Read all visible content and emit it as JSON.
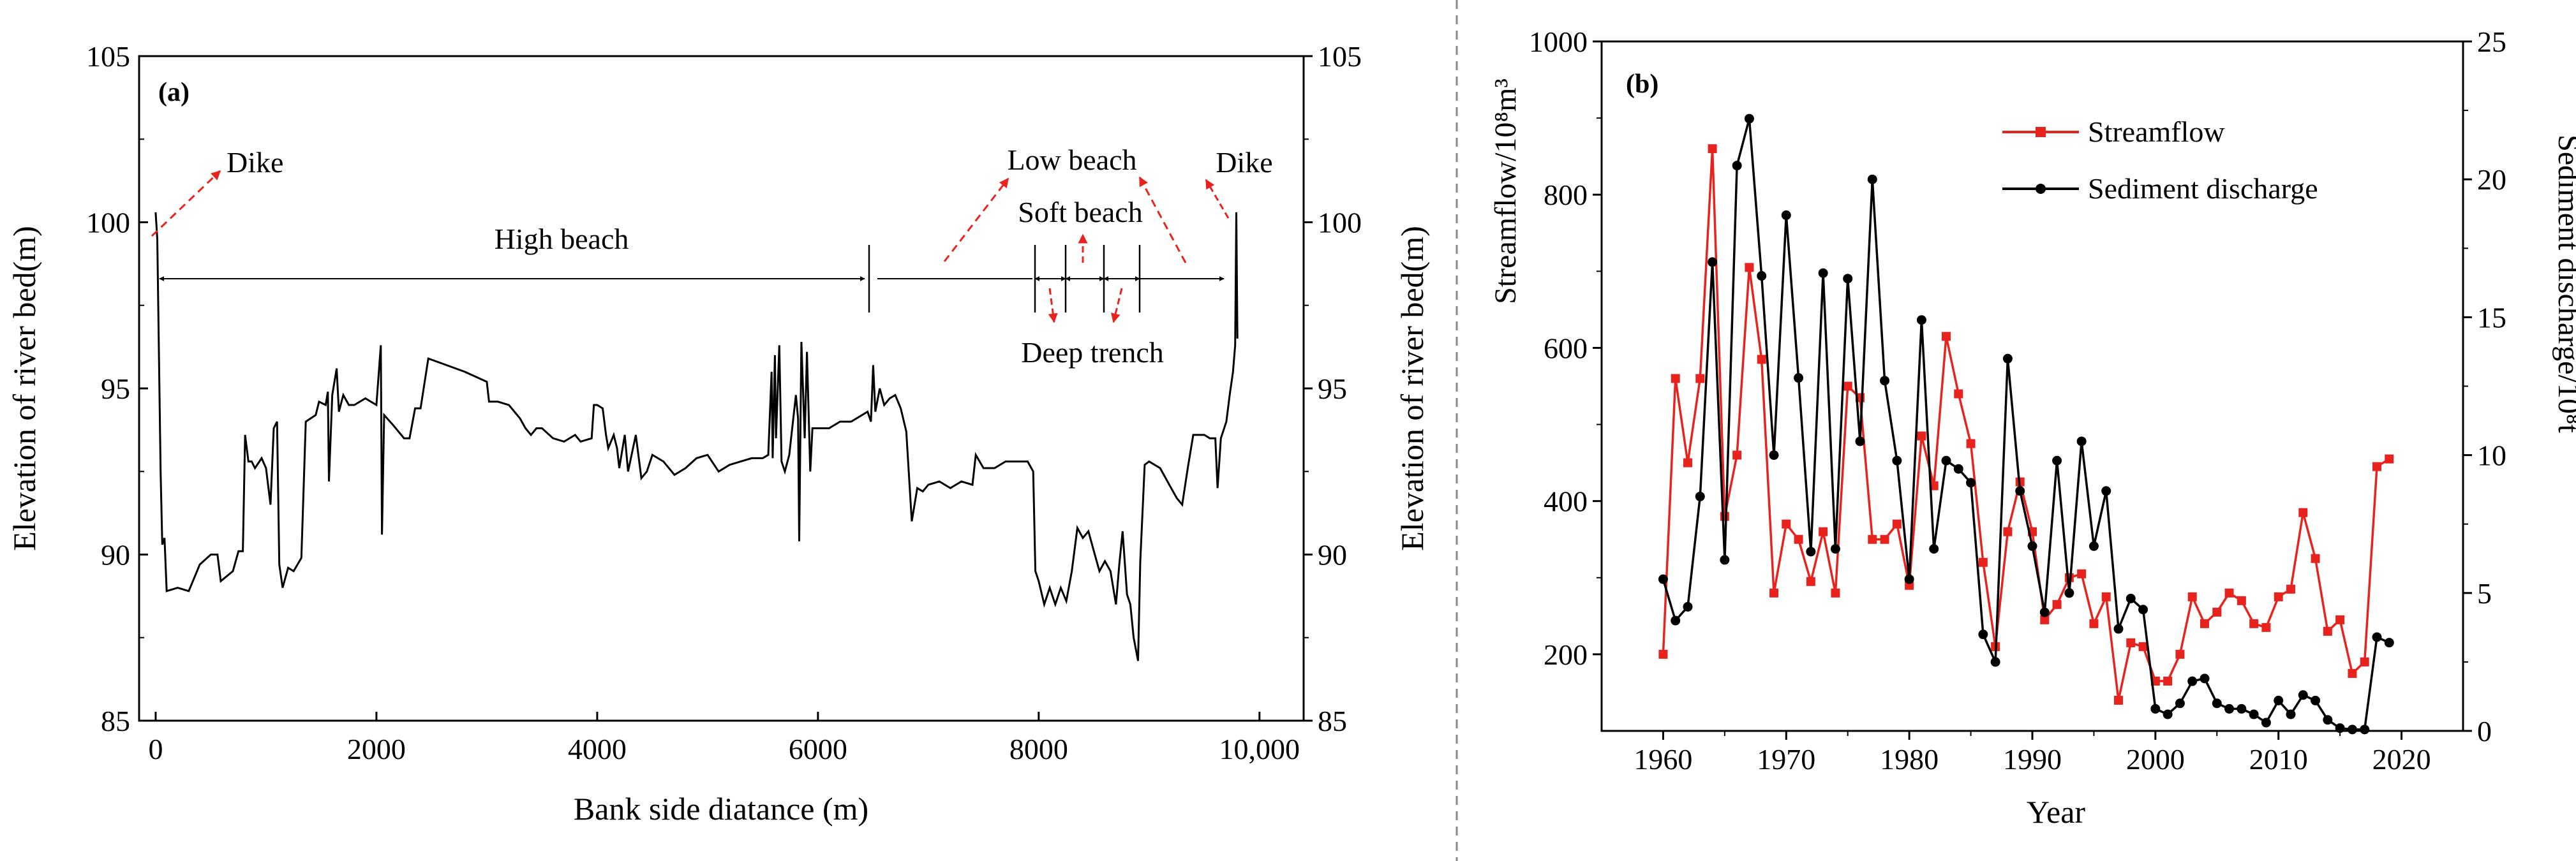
{
  "chart_data": [
    {
      "panel_label": "(a)",
      "type": "line",
      "xlabel": "Bank side diatance (m)",
      "ylabel_left": "Elevation of river bed(m)",
      "ylabel_right": "Elevation of river bed(m)",
      "xlim": [
        -150,
        10400
      ],
      "ylim": [
        85,
        105
      ],
      "x_ticks": [
        0,
        2000,
        4000,
        6000,
        8000,
        10000
      ],
      "x_tick_labels": [
        "0",
        "2000",
        "4000",
        "6000",
        "8000",
        "10,000"
      ],
      "y_ticks": [
        85,
        90,
        95,
        100,
        105
      ],
      "y_tick_labels": [
        "85",
        "90",
        "95",
        "100",
        "105"
      ],
      "annotations": {
        "dike_left": "Dike",
        "dike_right": "Dike",
        "high_beach": "High beach",
        "low_beach": "Low beach",
        "soft_beach": "Soft beach",
        "deep_trench": "Deep trench"
      },
      "zone_markers_x": [
        0,
        6500,
        8000,
        8250,
        8600,
        8850,
        9780
      ],
      "annotation_color": "#e8231e",
      "series": [
        {
          "name": "Elevation of river bed",
          "color": "#000000",
          "points": [
            [
              0,
              100.3
            ],
            [
              15,
              99.5
            ],
            [
              30,
              96
            ],
            [
              45,
              92.5
            ],
            [
              60,
              90.3
            ],
            [
              80,
              90.5
            ],
            [
              100,
              88.9
            ],
            [
              200,
              89
            ],
            [
              300,
              88.9
            ],
            [
              400,
              89.7
            ],
            [
              500,
              90
            ],
            [
              560,
              90
            ],
            [
              590,
              89.2
            ],
            [
              700,
              89.5
            ],
            [
              750,
              90.1
            ],
            [
              790,
              90.1
            ],
            [
              810,
              93.6
            ],
            [
              840,
              92.8
            ],
            [
              870,
              92.8
            ],
            [
              900,
              92.6
            ],
            [
              960,
              92.9
            ],
            [
              1000,
              92.6
            ],
            [
              1040,
              91.5
            ],
            [
              1070,
              93.8
            ],
            [
              1100,
              94
            ],
            [
              1120,
              89.7
            ],
            [
              1150,
              89
            ],
            [
              1200,
              89.6
            ],
            [
              1250,
              89.5
            ],
            [
              1320,
              89.9
            ],
            [
              1360,
              94
            ],
            [
              1450,
              94.2
            ],
            [
              1480,
              94.6
            ],
            [
              1540,
              94.5
            ],
            [
              1560,
              94.9
            ],
            [
              1570,
              92.2
            ],
            [
              1600,
              94.8
            ],
            [
              1640,
              95.6
            ],
            [
              1660,
              94.3
            ],
            [
              1700,
              94.8
            ],
            [
              1750,
              94.5
            ],
            [
              1800,
              94.5
            ],
            [
              1900,
              94.7
            ],
            [
              2000,
              94.5
            ],
            [
              2040,
              96.3
            ],
            [
              2050,
              90.6
            ],
            [
              2070,
              94.2
            ],
            [
              2150,
              93.9
            ],
            [
              2200,
              93.7
            ],
            [
              2250,
              93.5
            ],
            [
              2300,
              93.5
            ],
            [
              2350,
              94.4
            ],
            [
              2400,
              94.4
            ],
            [
              2470,
              95.9
            ],
            [
              2800,
              95.5
            ],
            [
              3000,
              95.2
            ],
            [
              3020,
              94.6
            ],
            [
              3100,
              94.6
            ],
            [
              3200,
              94.5
            ],
            [
              3300,
              94.1
            ],
            [
              3350,
              93.8
            ],
            [
              3400,
              93.6
            ],
            [
              3450,
              93.8
            ],
            [
              3500,
              93.8
            ],
            [
              3600,
              93.5
            ],
            [
              3700,
              93.4
            ],
            [
              3800,
              93.6
            ],
            [
              3850,
              93.4
            ],
            [
              3950,
              93.5
            ],
            [
              3970,
              94.5
            ],
            [
              4000,
              94.5
            ],
            [
              4050,
              94.4
            ],
            [
              4080,
              93.6
            ],
            [
              4100,
              93.2
            ],
            [
              4150,
              93.6
            ],
            [
              4180,
              93.2
            ],
            [
              4200,
              92.6
            ],
            [
              4250,
              93.6
            ],
            [
              4280,
              92.5
            ],
            [
              4350,
              93.6
            ],
            [
              4400,
              92.3
            ],
            [
              4450,
              92.5
            ],
            [
              4500,
              93
            ],
            [
              4600,
              92.8
            ],
            [
              4700,
              92.4
            ],
            [
              4800,
              92.6
            ],
            [
              4900,
              92.9
            ],
            [
              5000,
              93
            ],
            [
              5100,
              92.5
            ],
            [
              5200,
              92.7
            ],
            [
              5300,
              92.8
            ],
            [
              5400,
              92.9
            ],
            [
              5500,
              92.9
            ],
            [
              5550,
              93
            ],
            [
              5580,
              95.5
            ],
            [
              5590,
              92.9
            ],
            [
              5610,
              96
            ],
            [
              5620,
              93.5
            ],
            [
              5650,
              96.3
            ],
            [
              5670,
              92.8
            ],
            [
              5700,
              92.5
            ],
            [
              5740,
              93
            ],
            [
              5800,
              94.8
            ],
            [
              5820,
              94.1
            ],
            [
              5830,
              90.4
            ],
            [
              5850,
              96.4
            ],
            [
              5880,
              93.5
            ],
            [
              5900,
              96.1
            ],
            [
              5930,
              92.5
            ],
            [
              5950,
              93.8
            ],
            [
              6000,
              93.8
            ],
            [
              6100,
              93.8
            ],
            [
              6200,
              94
            ],
            [
              6300,
              94
            ],
            [
              6400,
              94.2
            ],
            [
              6450,
              94.3
            ],
            [
              6480,
              94
            ],
            [
              6500,
              95.7
            ],
            [
              6520,
              94.3
            ],
            [
              6560,
              95
            ],
            [
              6600,
              94.5
            ],
            [
              6650,
              94.7
            ],
            [
              6700,
              94.8
            ],
            [
              6750,
              94.4
            ],
            [
              6800,
              93.7
            ],
            [
              6850,
              91
            ],
            [
              6900,
              92
            ],
            [
              6950,
              91.9
            ],
            [
              7000,
              92.1
            ],
            [
              7100,
              92.2
            ],
            [
              7200,
              92
            ],
            [
              7300,
              92.2
            ],
            [
              7400,
              92.1
            ],
            [
              7430,
              93
            ],
            [
              7500,
              92.6
            ],
            [
              7600,
              92.6
            ],
            [
              7700,
              92.8
            ],
            [
              7800,
              92.8
            ],
            [
              7900,
              92.8
            ],
            [
              7950,
              92.5
            ],
            [
              7970,
              89.5
            ],
            [
              8000,
              89.2
            ],
            [
              8050,
              88.5
            ],
            [
              8100,
              89
            ],
            [
              8150,
              88.5
            ],
            [
              8200,
              89
            ],
            [
              8250,
              88.6
            ],
            [
              8300,
              89.5
            ],
            [
              8350,
              90.8
            ],
            [
              8400,
              90.5
            ],
            [
              8450,
              90.7
            ],
            [
              8500,
              90.1
            ],
            [
              8550,
              89.5
            ],
            [
              8600,
              89.8
            ],
            [
              8650,
              89.5
            ],
            [
              8700,
              88.5
            ],
            [
              8730,
              89.7
            ],
            [
              8760,
              90.7
            ],
            [
              8800,
              88.8
            ],
            [
              8830,
              88.5
            ],
            [
              8860,
              87.5
            ],
            [
              8900,
              86.8
            ],
            [
              8920,
              89.8
            ],
            [
              8960,
              92.7
            ],
            [
              9000,
              92.8
            ],
            [
              9100,
              92.6
            ],
            [
              9200,
              92
            ],
            [
              9250,
              91.7
            ],
            [
              9300,
              91.5
            ],
            [
              9350,
              92.6
            ],
            [
              9400,
              93.6
            ],
            [
              9500,
              93.6
            ],
            [
              9550,
              93.5
            ],
            [
              9600,
              93.5
            ],
            [
              9620,
              92
            ],
            [
              9650,
              93.5
            ],
            [
              9700,
              94
            ],
            [
              9730,
              94.8
            ],
            [
              9760,
              95.5
            ],
            [
              9780,
              96.3
            ],
            [
              9790,
              100.3
            ],
            [
              9800,
              96.5
            ]
          ]
        }
      ]
    },
    {
      "panel_label": "(b)",
      "type": "line",
      "xlabel": "Year",
      "ylabel_left": "Streamflow/10⁸m³",
      "ylabel_right": "Sediment discharge/10⁸t",
      "xlim": [
        1955,
        2025
      ],
      "ylim_left": [
        100,
        1000
      ],
      "ylim_right": [
        0,
        25
      ],
      "x_ticks": [
        1960,
        1970,
        1980,
        1990,
        2000,
        2010,
        2020
      ],
      "x_tick_labels": [
        "1960",
        "1970",
        "1980",
        "1990",
        "2000",
        "2010",
        "2020"
      ],
      "y_left_ticks": [
        200,
        400,
        600,
        800,
        1000
      ],
      "y_left_tick_labels": [
        "200",
        "400",
        "600",
        "800",
        "1000"
      ],
      "y_right_ticks": [
        0,
        5,
        10,
        15,
        20,
        25
      ],
      "y_right_tick_labels": [
        "0",
        "5",
        "10",
        "15",
        "20",
        "25"
      ],
      "legend_position": "top-right",
      "years": [
        1960,
        1961,
        1962,
        1963,
        1964,
        1965,
        1966,
        1967,
        1968,
        1969,
        1970,
        1971,
        1972,
        1973,
        1974,
        1975,
        1976,
        1977,
        1978,
        1979,
        1980,
        1981,
        1982,
        1983,
        1984,
        1985,
        1986,
        1987,
        1988,
        1989,
        1990,
        1991,
        1992,
        1993,
        1994,
        1995,
        1996,
        1997,
        1998,
        1999,
        2000,
        2001,
        2002,
        2003,
        2004,
        2005,
        2006,
        2007,
        2008,
        2009,
        2010,
        2011,
        2012,
        2013,
        2014,
        2015,
        2016,
        2017,
        2018,
        2019
      ],
      "series": [
        {
          "name": "Streamflow",
          "axis": "left",
          "color": "#e8231e",
          "marker": "square",
          "values": [
            200,
            560,
            450,
            560,
            860,
            380,
            460,
            705,
            585,
            280,
            370,
            350,
            295,
            360,
            280,
            550,
            535,
            350,
            350,
            370,
            290,
            485,
            420,
            615,
            540,
            475,
            320,
            210,
            360,
            425,
            360,
            245,
            265,
            300,
            305,
            240,
            275,
            140,
            215,
            210,
            165,
            165,
            200,
            275,
            240,
            255,
            280,
            270,
            240,
            235,
            275,
            285,
            385,
            325,
            230,
            245,
            175,
            190,
            445,
            455
          ]
        },
        {
          "name": "Sediment discharge",
          "axis": "right",
          "color": "#000000",
          "marker": "circle",
          "values": [
            5.5,
            4.0,
            4.5,
            8.5,
            17.0,
            6.2,
            20.5,
            22.2,
            16.5,
            10.0,
            18.7,
            12.8,
            6.5,
            16.6,
            6.6,
            16.4,
            10.5,
            20.0,
            12.7,
            9.8,
            5.5,
            14.9,
            6.6,
            9.8,
            9.5,
            9.0,
            3.5,
            2.5,
            13.5,
            8.7,
            6.7,
            4.3,
            9.8,
            5.0,
            10.5,
            6.7,
            8.7,
            3.7,
            4.8,
            4.4,
            0.8,
            0.6,
            1.0,
            1.8,
            1.9,
            1.0,
            0.8,
            0.8,
            0.6,
            0.3,
            1.1,
            0.6,
            1.3,
            1.1,
            0.4,
            0.1,
            0.05,
            0.05,
            3.4,
            3.2
          ]
        }
      ]
    }
  ]
}
